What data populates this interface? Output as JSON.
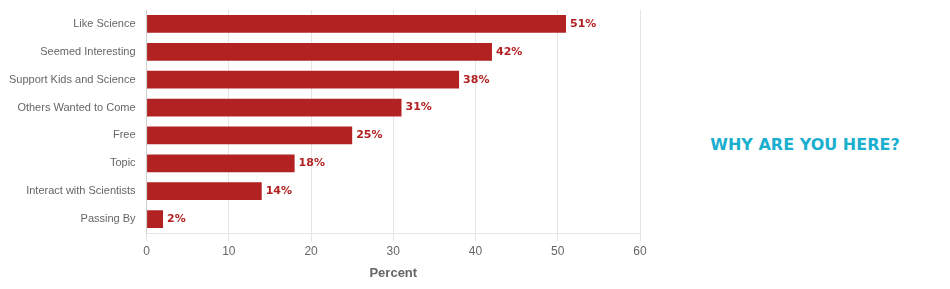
{
  "chart_data": {
    "type": "bar",
    "orientation": "horizontal",
    "categories": [
      "Passing By",
      "Interact with Scientists",
      "Topic",
      "Free",
      "Others Wanted to Come",
      "Support Kids and Science",
      "Seemed Interesting",
      "Like Science"
    ],
    "values": [
      2,
      14,
      18,
      25,
      31,
      38,
      42,
      51
    ],
    "value_labels": [
      "2%",
      "14%",
      "18%",
      "25%",
      "31%",
      "38%",
      "42%",
      "51%"
    ],
    "data_labels": true,
    "color": "#B22222",
    "xlabel": "Percent",
    "xlim": [
      0,
      60
    ],
    "xticks": [
      0,
      10,
      20,
      30,
      40,
      50,
      60
    ],
    "grid": true,
    "annotations": [
      {
        "text": "WHY ARE YOU HERE?",
        "color": "#1AAFCE"
      }
    ]
  }
}
